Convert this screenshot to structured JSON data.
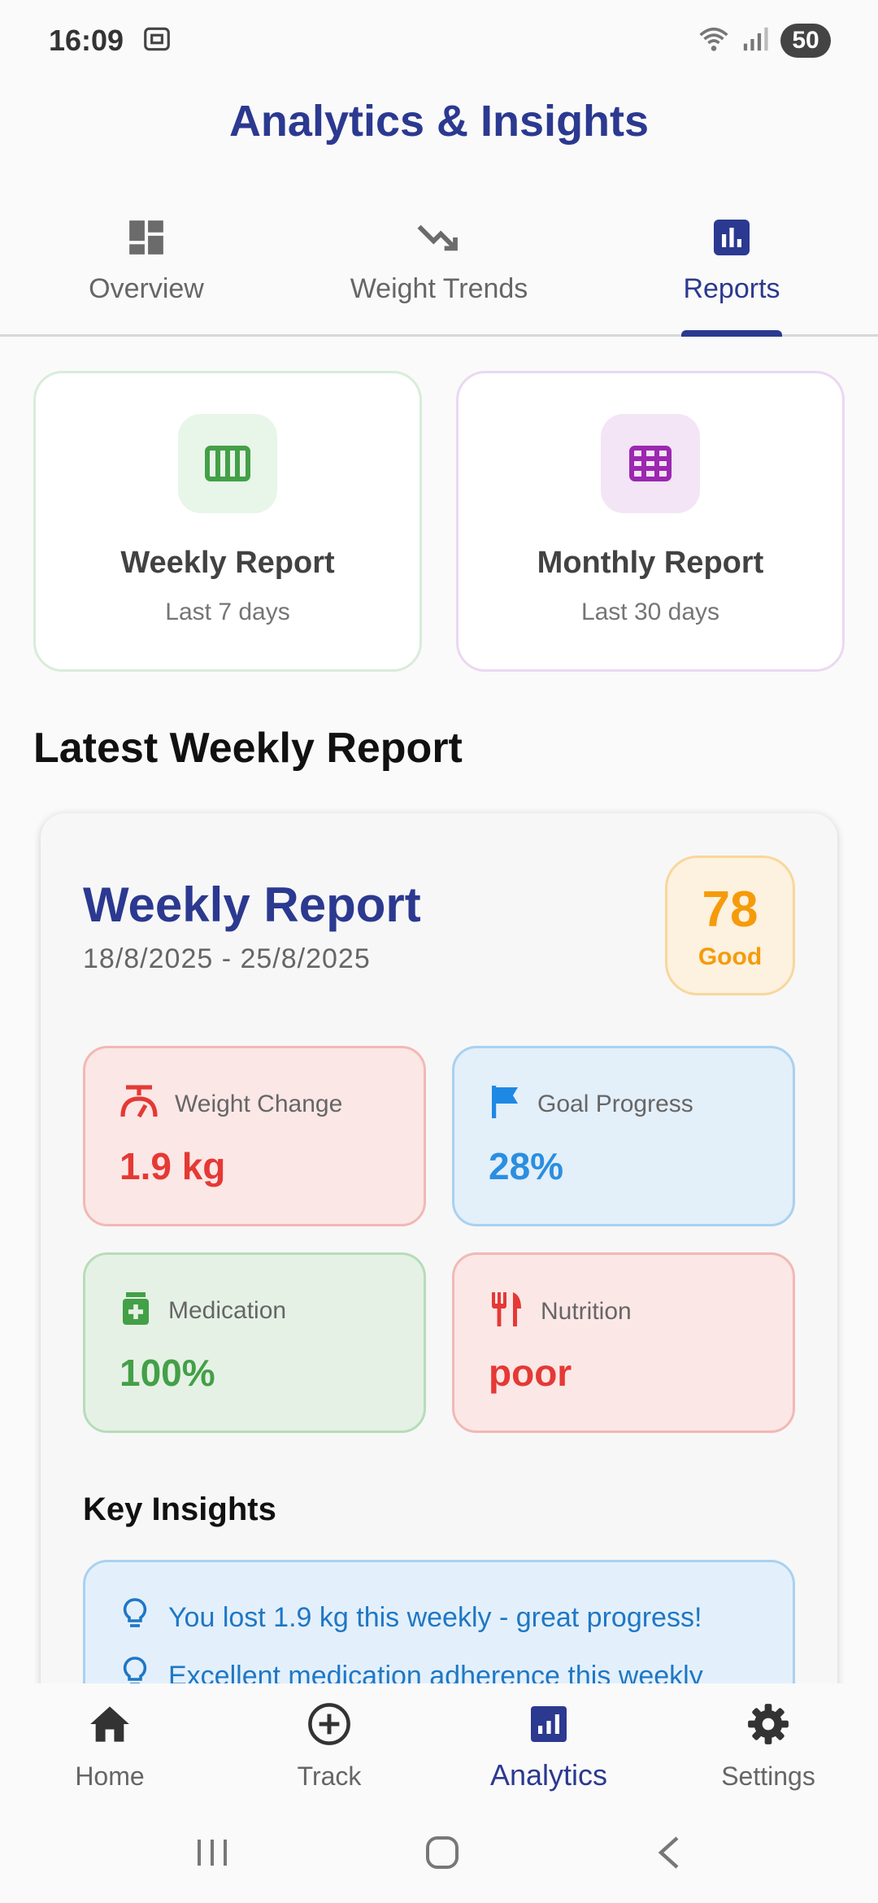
{
  "status_bar": {
    "time": "16:09",
    "battery": "50"
  },
  "header": {
    "title": "Analytics & Insights"
  },
  "tabs": [
    {
      "label": "Overview",
      "icon": "dashboard-icon",
      "active": false
    },
    {
      "label": "Weight Trends",
      "icon": "trending-down-icon",
      "active": false
    },
    {
      "label": "Reports",
      "icon": "bar-chart-icon",
      "active": true
    }
  ],
  "report_cards": {
    "weekly": {
      "title": "Weekly Report",
      "subtitle": "Last 7 days",
      "icon": "view-week-icon",
      "color": "#43a047"
    },
    "monthly": {
      "title": "Monthly Report",
      "subtitle": "Last 30 days",
      "icon": "calendar-grid-icon",
      "color": "#9c27b0"
    }
  },
  "latest": {
    "section_title": "Latest Weekly Report",
    "title": "Weekly Report",
    "date_range": "18/8/2025 - 25/8/2025",
    "score": {
      "value": "78",
      "label": "Good"
    },
    "metrics": {
      "weight_change": {
        "label": "Weight Change",
        "value": "1.9 kg",
        "icon": "scale-icon"
      },
      "goal_progress": {
        "label": "Goal Progress",
        "value": "28%",
        "icon": "flag-icon"
      },
      "medication": {
        "label": "Medication",
        "value": "100%",
        "icon": "medication-icon"
      },
      "nutrition": {
        "label": "Nutrition",
        "value": "poor",
        "icon": "restaurant-icon"
      }
    },
    "key_insights_title": "Key Insights",
    "insights": [
      "You lost 1.9 kg this weekly - great progress!",
      "Excellent medication adherence this weekly"
    ]
  },
  "bottom_nav": [
    {
      "label": "Home",
      "icon": "home-icon",
      "active": false
    },
    {
      "label": "Track",
      "icon": "add-circle-icon",
      "active": false
    },
    {
      "label": "Analytics",
      "icon": "analytics-icon",
      "active": true
    },
    {
      "label": "Settings",
      "icon": "gear-icon",
      "active": false
    }
  ],
  "colors": {
    "primary": "#2b3990",
    "score": "#f59b0b",
    "danger": "#e53935",
    "info": "#2b8ee0",
    "success": "#43a047"
  }
}
